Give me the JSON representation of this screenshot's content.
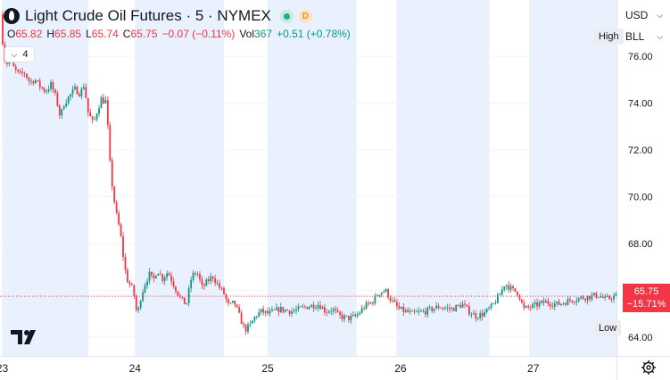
{
  "header": {
    "symbol_title": "Light Crude Oil Futures · 5 · NYMEX",
    "badge_d": "D",
    "ohlc": {
      "o_label": "O",
      "o_value": "65.82",
      "h_label": "H",
      "h_value": "65.85",
      "l_label": "L",
      "l_value": "65.74",
      "c_label": "C",
      "c_value": "65.75",
      "change": "−0.07 (−0.11%)",
      "vol_label": "Vol",
      "vol_value": "367",
      "vol_change": "+0.51 (+0.78%)"
    },
    "indicators_count": "4"
  },
  "right_scale": {
    "currency": "USD",
    "unit": "BLL",
    "high_label": "High",
    "low_label": "Low",
    "low_value": "64.00",
    "last_price": "65.75",
    "last_change": "−15.71%"
  },
  "colors": {
    "up": "#089981",
    "down": "#f23645",
    "session_shade": "#e9f0fe",
    "grid": "#f0f3fa",
    "price_line": "#f23645"
  },
  "chart_data": {
    "type": "candlestick",
    "y_ticks": [
      "64.00",
      "66.00",
      "68.00",
      "70.00",
      "72.00",
      "74.00",
      "76.00"
    ],
    "y_tick_values": [
      64,
      66,
      68,
      70,
      72,
      74,
      76
    ],
    "ylim": [
      63.2,
      78.1
    ],
    "x_ticks": [
      "23",
      "24",
      "25",
      "26",
      "27"
    ],
    "x_range_days": [
      23.0,
      28.0
    ],
    "shaded_sessions": [
      [
        23.0,
        23.65
      ],
      [
        24.0,
        24.67
      ],
      [
        25.0,
        25.67
      ],
      [
        25.97,
        26.67
      ],
      [
        26.97,
        27.63
      ]
    ],
    "price_path": [
      [
        23.0,
        77.8
      ],
      [
        23.02,
        76.4
      ],
      [
        23.04,
        75.6
      ],
      [
        23.07,
        76.0
      ],
      [
        23.1,
        75.5
      ],
      [
        23.14,
        75.2
      ],
      [
        23.18,
        75.3
      ],
      [
        23.22,
        74.9
      ],
      [
        23.26,
        75.0
      ],
      [
        23.3,
        74.7
      ],
      [
        23.34,
        74.5
      ],
      [
        23.38,
        74.8
      ],
      [
        23.42,
        74.2
      ],
      [
        23.45,
        73.4
      ],
      [
        23.48,
        74.0
      ],
      [
        23.52,
        74.3
      ],
      [
        23.56,
        74.6
      ],
      [
        23.6,
        74.4
      ],
      [
        23.63,
        74.8
      ],
      [
        23.66,
        73.6
      ],
      [
        23.7,
        73.1
      ],
      [
        23.73,
        73.7
      ],
      [
        23.76,
        74.2
      ],
      [
        23.79,
        74.0
      ],
      [
        23.8,
        74.4
      ],
      [
        23.81,
        72.7
      ],
      [
        23.83,
        71.0
      ],
      [
        23.86,
        69.7
      ],
      [
        23.88,
        69.0
      ],
      [
        23.9,
        68.6
      ],
      [
        23.93,
        67.2
      ],
      [
        23.95,
        66.5
      ],
      [
        24.0,
        66.0
      ],
      [
        24.03,
        64.9
      ],
      [
        24.06,
        65.8
      ],
      [
        24.09,
        66.3
      ],
      [
        24.12,
        66.7
      ],
      [
        24.15,
        66.4
      ],
      [
        24.18,
        66.9
      ],
      [
        24.22,
        66.5
      ],
      [
        24.26,
        66.8
      ],
      [
        24.3,
        66.3
      ],
      [
        24.36,
        65.6
      ],
      [
        24.4,
        65.4
      ],
      [
        24.44,
        66.6
      ],
      [
        24.48,
        66.8
      ],
      [
        24.52,
        66.1
      ],
      [
        24.56,
        66.4
      ],
      [
        24.6,
        66.6
      ],
      [
        24.64,
        66.2
      ],
      [
        24.68,
        65.9
      ],
      [
        24.72,
        65.3
      ],
      [
        24.76,
        65.5
      ],
      [
        24.8,
        64.9
      ],
      [
        24.84,
        64.3
      ],
      [
        24.88,
        64.5
      ],
      [
        24.92,
        64.9
      ],
      [
        24.96,
        65.1
      ],
      [
        25.02,
        65.0
      ],
      [
        25.1,
        65.2
      ],
      [
        25.2,
        65.1
      ],
      [
        25.3,
        65.3
      ],
      [
        25.4,
        65.4
      ],
      [
        25.45,
        65.1
      ],
      [
        25.5,
        65.2
      ],
      [
        25.55,
        64.9
      ],
      [
        25.62,
        64.8
      ],
      [
        25.68,
        64.9
      ],
      [
        25.74,
        65.3
      ],
      [
        25.8,
        65.5
      ],
      [
        25.85,
        65.9
      ],
      [
        25.9,
        66.0
      ],
      [
        25.94,
        65.6
      ],
      [
        26.0,
        65.2
      ],
      [
        26.1,
        65.0
      ],
      [
        26.2,
        65.1
      ],
      [
        26.3,
        65.3
      ],
      [
        26.4,
        65.2
      ],
      [
        26.48,
        65.4
      ],
      [
        26.53,
        65.1
      ],
      [
        26.58,
        64.9
      ],
      [
        26.64,
        65.0
      ],
      [
        26.7,
        65.3
      ],
      [
        26.76,
        65.8
      ],
      [
        26.8,
        66.3
      ],
      [
        26.86,
        66.0
      ],
      [
        26.9,
        65.9
      ],
      [
        26.94,
        65.2
      ],
      [
        27.0,
        65.3
      ],
      [
        27.1,
        65.5
      ],
      [
        27.2,
        65.4
      ],
      [
        27.3,
        65.6
      ],
      [
        27.4,
        65.7
      ],
      [
        27.5,
        65.8
      ],
      [
        27.56,
        65.6
      ],
      [
        27.6,
        65.7
      ],
      [
        27.63,
        65.75
      ]
    ]
  }
}
